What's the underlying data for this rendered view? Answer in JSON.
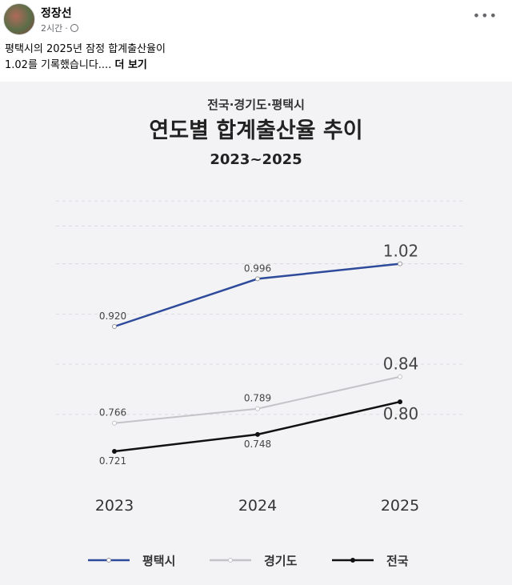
{
  "post": {
    "author": "정장선",
    "time": "2시간",
    "separator": "·",
    "body_line1": "평택시의 2025년 잠정 합계출산율이",
    "body_line2": "1.02를 기록했습니다....",
    "see_more": "더 보기"
  },
  "chart_data": {
    "type": "line",
    "supertitle": "전국·경기도·평택시",
    "title": "연도별 합계출산율 추이",
    "subtitle": "2023~2025",
    "categories": [
      "2023",
      "2024",
      "2025"
    ],
    "series": [
      {
        "name": "평택시",
        "color": "#2e4a9a",
        "values": [
          0.92,
          0.996,
          1.02
        ],
        "labels": [
          "0.920",
          "0.996",
          "1.02"
        ]
      },
      {
        "name": "경기도",
        "color": "#c4c4c8",
        "values": [
          0.766,
          0.789,
          0.84
        ],
        "labels": [
          "0.766",
          "0.789",
          "0.84"
        ]
      },
      {
        "name": "전국",
        "color": "#111111",
        "values": [
          0.721,
          0.748,
          0.8
        ],
        "labels": [
          "0.721",
          "0.748",
          "0.80"
        ]
      }
    ],
    "legend": "bottom"
  }
}
